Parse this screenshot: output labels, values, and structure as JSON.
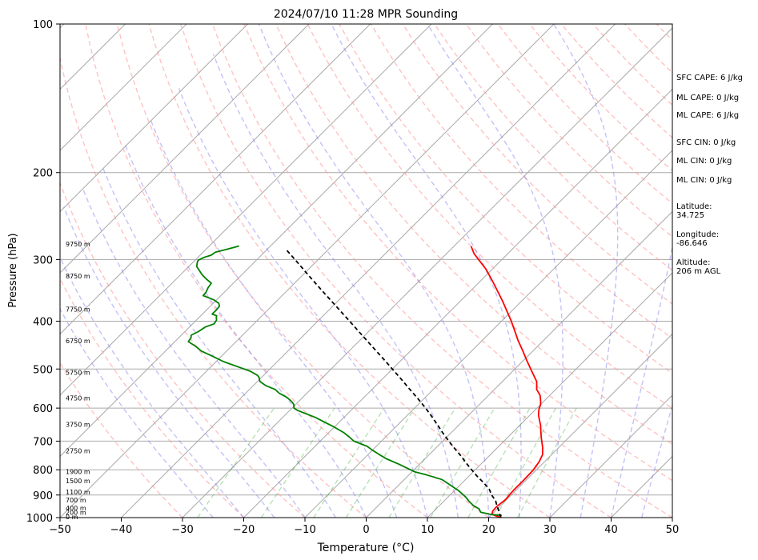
{
  "chart_data": {
    "type": "skew-t",
    "title": "2024/07/10 11:28 MPR Sounding",
    "xlabel": "Temperature (°C)",
    "ylabel": "Pressure (hPa)",
    "xlim": [
      -50,
      50
    ],
    "ylim": [
      1000,
      100
    ],
    "y_scale": "log",
    "grid": true,
    "x_ticks": [
      "−50",
      "−40",
      "−30",
      "−20",
      "−10",
      "0",
      "10",
      "20",
      "30",
      "40",
      "50"
    ],
    "y_ticks": [
      "100",
      "200",
      "300",
      "400",
      "500",
      "600",
      "700",
      "800",
      "900",
      "1000"
    ],
    "height_labels": [
      {
        "p": 1000,
        "label": "0 m"
      },
      {
        "p": 980,
        "label": "200 m"
      },
      {
        "p": 960,
        "label": "400 m"
      },
      {
        "p": 925,
        "label": "700 m"
      },
      {
        "p": 890,
        "label": "1100 m"
      },
      {
        "p": 845,
        "label": "1500 m"
      },
      {
        "p": 810,
        "label": "1900 m"
      },
      {
        "p": 735,
        "label": "2750 m"
      },
      {
        "p": 650,
        "label": "3750 m"
      },
      {
        "p": 575,
        "label": "4750 m"
      },
      {
        "p": 510,
        "label": "5750 m"
      },
      {
        "p": 440,
        "label": "6750 m"
      },
      {
        "p": 380,
        "label": "7750 m"
      },
      {
        "p": 325,
        "label": "8750 m"
      },
      {
        "p": 280,
        "label": "9750 m"
      }
    ],
    "series": [
      {
        "color": "#ff0000",
        "points": [
          [
            22,
            1000
          ],
          [
            20,
            985
          ],
          [
            19.6,
            970
          ],
          [
            19.5,
            950
          ],
          [
            19.8,
            920
          ],
          [
            19.6,
            880
          ],
          [
            19.6,
            840
          ],
          [
            19.5,
            800
          ],
          [
            19.1,
            770
          ],
          [
            18.5,
            745
          ],
          [
            17.3,
            720
          ],
          [
            15.6,
            690
          ],
          [
            14.5,
            670
          ],
          [
            13.4,
            650
          ],
          [
            12.4,
            635
          ],
          [
            11.4,
            620
          ],
          [
            10.6,
            605
          ],
          [
            10,
            590
          ],
          [
            9.4,
            580
          ],
          [
            8.4,
            565
          ],
          [
            6.9,
            550
          ],
          [
            5.6,
            530
          ],
          [
            3.4,
            508
          ],
          [
            0.5,
            480
          ],
          [
            -1.6,
            460
          ],
          [
            -4.1,
            438
          ],
          [
            -6.3,
            418
          ],
          [
            -8.4,
            400
          ],
          [
            -13,
            365
          ],
          [
            -17.5,
            335
          ],
          [
            -21,
            314
          ],
          [
            -25.5,
            292
          ],
          [
            -27.2,
            282
          ]
        ]
      },
      {
        "color": "#008000",
        "points": [
          [
            21.8,
            990
          ],
          [
            19.8,
            985
          ],
          [
            17.8,
            975
          ],
          [
            17,
            960
          ],
          [
            15.5,
            945
          ],
          [
            14,
            925
          ],
          [
            13,
            910
          ],
          [
            11.8,
            895
          ],
          [
            10.5,
            880
          ],
          [
            9,
            865
          ],
          [
            7.5,
            850
          ],
          [
            6.1,
            837
          ],
          [
            3,
            820
          ],
          [
            0.5,
            808
          ],
          [
            -0.6,
            800
          ],
          [
            -3.3,
            780
          ],
          [
            -6.3,
            760
          ],
          [
            -8.3,
            744
          ],
          [
            -10,
            730
          ],
          [
            -11.5,
            717
          ],
          [
            -14.5,
            700
          ],
          [
            -16,
            686
          ],
          [
            -17.5,
            673
          ],
          [
            -20.1,
            655
          ],
          [
            -22.5,
            640
          ],
          [
            -24.6,
            627
          ],
          [
            -27.6,
            612
          ],
          [
            -28.8,
            606
          ],
          [
            -29.7,
            600
          ],
          [
            -30.3,
            590
          ],
          [
            -30.9,
            584
          ],
          [
            -31.5,
            579
          ],
          [
            -32.7,
            570
          ],
          [
            -34.5,
            560
          ],
          [
            -35.8,
            550
          ],
          [
            -38,
            540
          ],
          [
            -39.6,
            530
          ],
          [
            -40.4,
            520
          ],
          [
            -41,
            515
          ],
          [
            -42.9,
            505
          ],
          [
            -45,
            497
          ],
          [
            -48.8,
            483
          ],
          [
            -51.7,
            470
          ],
          [
            -54.1,
            460
          ],
          [
            -55.8,
            450
          ],
          [
            -57.8,
            440
          ],
          [
            -58,
            432
          ],
          [
            -58.4,
            427
          ],
          [
            -57.8,
            420
          ],
          [
            -57.4,
            411
          ],
          [
            -56.5,
            405
          ],
          [
            -56.7,
            398
          ],
          [
            -57.2,
            393
          ],
          [
            -57.4,
            390
          ],
          [
            -58.4,
            387
          ],
          [
            -58.4,
            380
          ],
          [
            -58.5,
            373
          ],
          [
            -59.1,
            368
          ],
          [
            -60.5,
            362
          ],
          [
            -62.9,
            355
          ],
          [
            -63,
            349
          ],
          [
            -63.4,
            342
          ],
          [
            -63.6,
            335
          ],
          [
            -65,
            329
          ],
          [
            -66.5,
            322
          ],
          [
            -67.6,
            316
          ],
          [
            -68.7,
            310
          ],
          [
            -69.2,
            305
          ],
          [
            -69.5,
            301
          ],
          [
            -69,
            297
          ],
          [
            -68.2,
            294
          ],
          [
            -68,
            290
          ],
          [
            -66.6,
            286
          ],
          [
            -65.2,
            282
          ],
          [
            -65.4,
            281
          ]
        ]
      },
      {
        "color": "#000000",
        "dashed": true,
        "points": [
          [
            22,
            1000
          ],
          [
            21.3,
            985
          ],
          [
            20.6,
            970
          ],
          [
            19.6,
            950
          ],
          [
            18.4,
            925
          ],
          [
            16.8,
            900
          ],
          [
            15.4,
            875
          ],
          [
            13.5,
            850
          ],
          [
            11.4,
            825
          ],
          [
            9.4,
            800
          ],
          [
            7.4,
            775
          ],
          [
            5.4,
            750
          ],
          [
            3.2,
            725
          ],
          [
            1,
            700
          ],
          [
            -1.2,
            675
          ],
          [
            -3.4,
            650
          ],
          [
            -5.7,
            625
          ],
          [
            -8.2,
            600
          ],
          [
            -10.9,
            575
          ],
          [
            -13.8,
            550
          ],
          [
            -16.8,
            525
          ],
          [
            -20,
            500
          ],
          [
            -23.4,
            475
          ],
          [
            -27,
            450
          ],
          [
            -30.8,
            425
          ],
          [
            -34.8,
            400
          ],
          [
            -39.1,
            375
          ],
          [
            -43.7,
            350
          ],
          [
            -48.6,
            325
          ],
          [
            -53.8,
            300
          ],
          [
            -57.2,
            285
          ]
        ]
      }
    ],
    "panel": {
      "sfc_cape": "SFC CAPE: 6 J/kg",
      "ml_cape_1": "ML CAPE: 0 J/kg",
      "ml_cape_2": "ML CAPE: 6 J/kg",
      "sfc_cin": "SFC CIN: 0 J/kg",
      "ml_cin_1": "ML CIN: 0 J/kg",
      "ml_cin_2": "ML CIN: 0 J/kg",
      "lat_label": "Latitude:",
      "lat_value": "34.725",
      "lon_label": "Longitude:",
      "lon_value": "-86.646",
      "alt_label": "Altitude:",
      "alt_value": "206 m AGL"
    }
  }
}
